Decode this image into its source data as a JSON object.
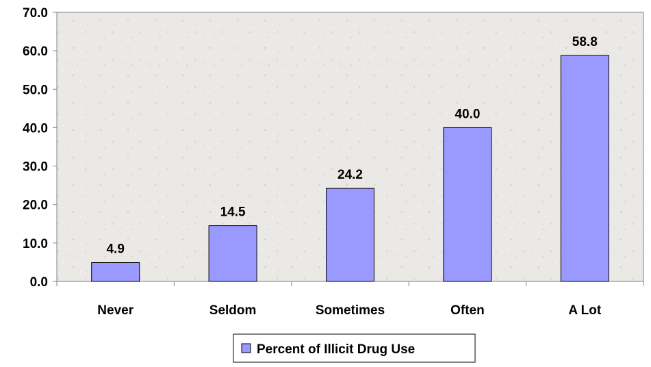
{
  "chart_data": {
    "type": "bar",
    "categories": [
      "Never",
      "Seldom",
      "Sometimes",
      "Often",
      "A Lot"
    ],
    "series": [
      {
        "name": "Percent of Illicit Drug Use",
        "values": [
          4.9,
          14.5,
          24.2,
          40.0,
          58.8
        ],
        "value_labels": [
          "4.9",
          "14.5",
          "24.2",
          "40.0",
          "58.8"
        ]
      }
    ],
    "ylim": [
      0,
      70
    ],
    "yticks": [
      0,
      10,
      20,
      30,
      40,
      50,
      60,
      70
    ],
    "ytick_labels": [
      "0.0",
      "10.0",
      "20.0",
      "30.0",
      "40.0",
      "50.0",
      "60.0",
      "70.0"
    ],
    "grid": false,
    "legend_position": "bottom",
    "colors": {
      "bar_fill": "#9999ff",
      "bar_stroke": "#000000",
      "plot_background": "#ebe9e6",
      "axis": "#808080"
    }
  }
}
